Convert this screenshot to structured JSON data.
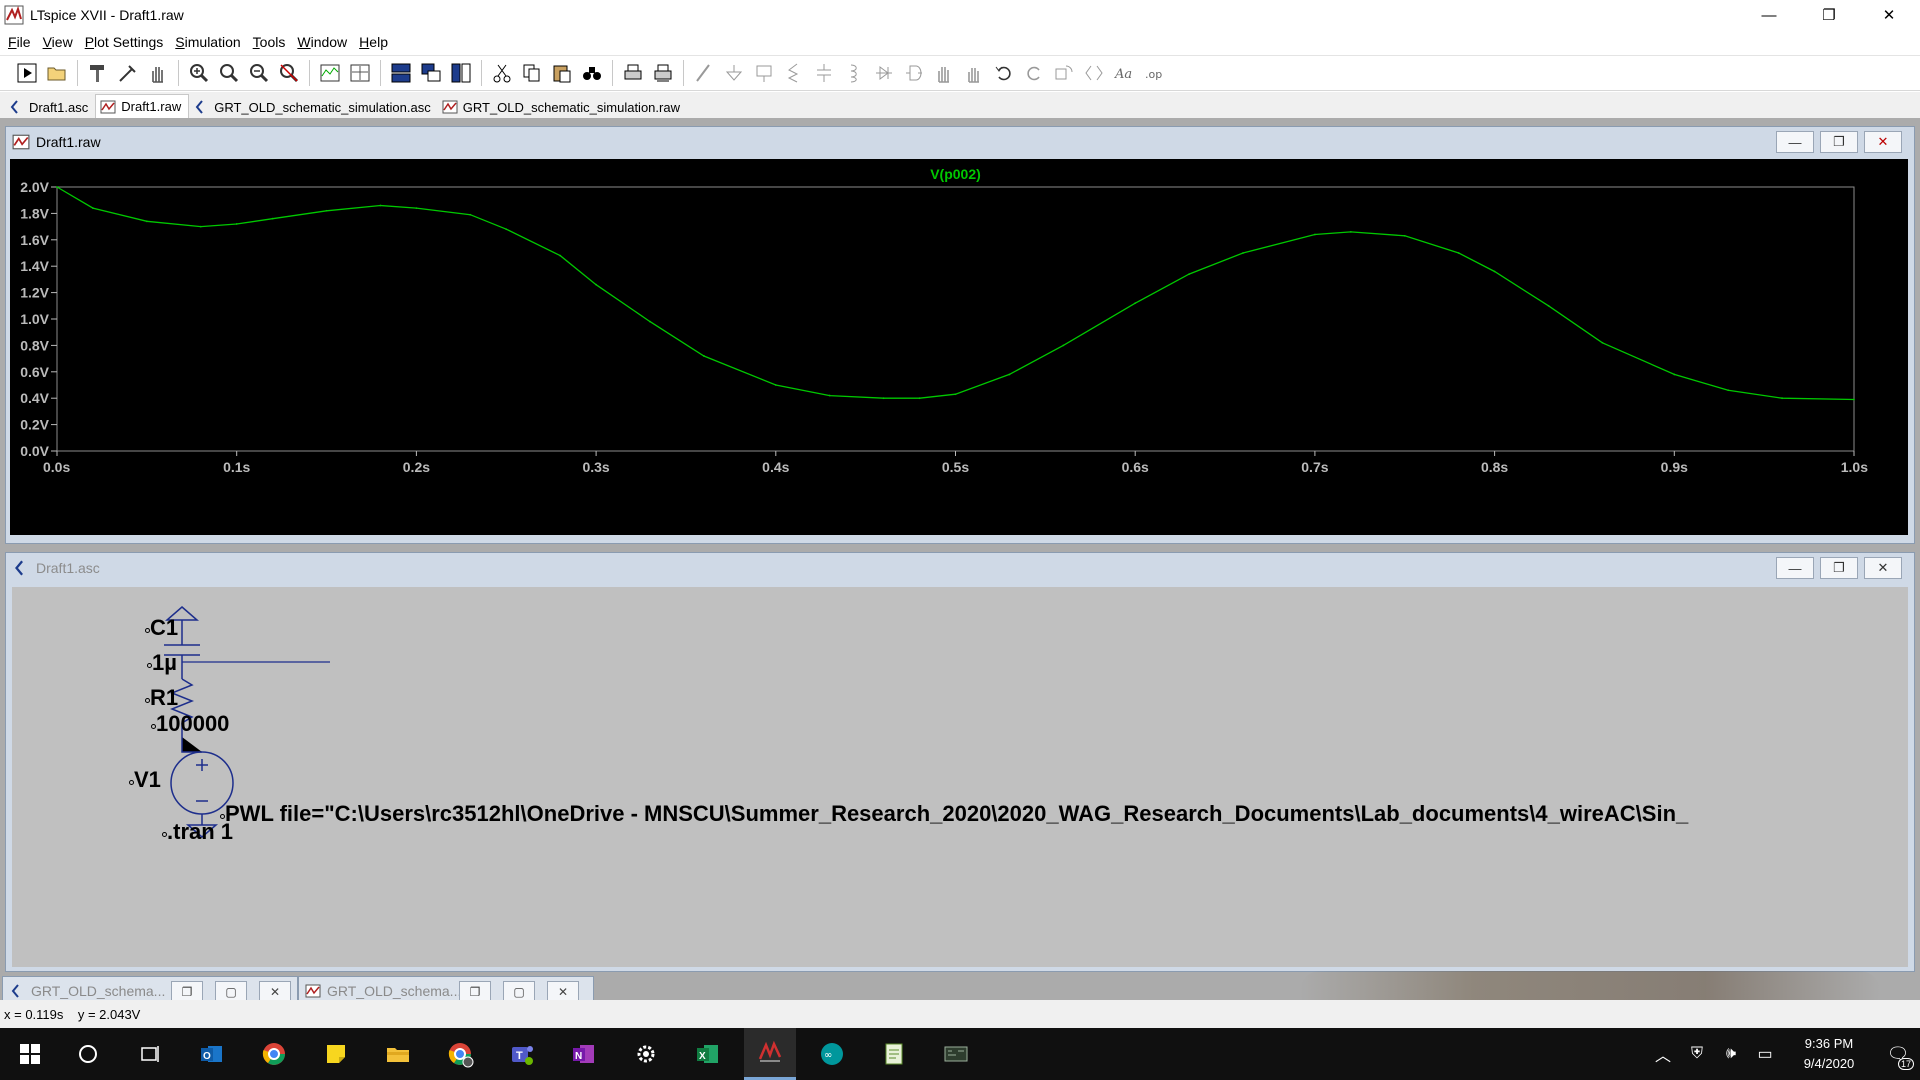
{
  "app": {
    "title": "LTspice XVII - Draft1.raw",
    "window_controls": {
      "minimize": "—",
      "maximize": "❐",
      "close": "✕"
    }
  },
  "menu": [
    "File",
    "View",
    "Plot Settings",
    "Simulation",
    "Tools",
    "Window",
    "Help"
  ],
  "toolbar": {
    "buttons": [
      "run-icon",
      "open-icon",
      "hammer-icon",
      "probe-icon",
      "pan-hand-icon",
      "zoom-in-icon",
      "zoom-area-icon",
      "zoom-out-icon",
      "zoom-cancel-icon",
      "autorange-icon",
      "waveform-edit-icon",
      "tile-horizontal-icon",
      "cascade-icon",
      "tile-vertical-icon",
      "cut-icon",
      "copy-icon",
      "paste-icon",
      "find-icon",
      "print-icon",
      "print-preview-icon",
      "wire-icon",
      "ground-icon",
      "label-icon",
      "resistor-icon",
      "capacitor-icon",
      "inductor-icon",
      "diode-icon",
      "component-icon",
      "move-hand-icon",
      "drag-hand-icon",
      "undo-icon",
      "redo-icon",
      "rotate-icon",
      "mirror-icon",
      "text-icon",
      "spice-directive-icon"
    ]
  },
  "tabs": [
    {
      "label": "Draft1.asc",
      "icon": "schematic-icon",
      "active": false
    },
    {
      "label": "Draft1.raw",
      "icon": "waveform-icon",
      "active": true
    },
    {
      "label": "GRT_OLD_schematic_simulation.asc",
      "icon": "schematic-icon",
      "active": false
    },
    {
      "label": "GRT_OLD_schematic_simulation.raw",
      "icon": "waveform-icon",
      "active": false
    }
  ],
  "waveform_window": {
    "title": "Draft1.raw",
    "buttons": {
      "minimize": "—",
      "restore": "❐",
      "close": "✕"
    }
  },
  "chart_data": {
    "type": "line",
    "title": "V(p002)",
    "xlabel": "",
    "ylabel": "",
    "xlim": [
      0,
      1
    ],
    "ylim": [
      0,
      2
    ],
    "x_ticks": [
      "0.0s",
      "0.1s",
      "0.2s",
      "0.3s",
      "0.4s",
      "0.5s",
      "0.6s",
      "0.7s",
      "0.8s",
      "0.9s",
      "1.0s"
    ],
    "y_ticks": [
      "0.0V",
      "0.2V",
      "0.4V",
      "0.6V",
      "0.8V",
      "1.0V",
      "1.2V",
      "1.4V",
      "1.6V",
      "1.8V",
      "2.0V"
    ],
    "grid": false,
    "series": [
      {
        "name": "V(p002)",
        "color": "#00c800",
        "x": [
          0.0,
          0.02,
          0.05,
          0.08,
          0.1,
          0.12,
          0.15,
          0.18,
          0.2,
          0.23,
          0.25,
          0.28,
          0.3,
          0.33,
          0.36,
          0.4,
          0.43,
          0.46,
          0.48,
          0.5,
          0.53,
          0.56,
          0.6,
          0.63,
          0.66,
          0.7,
          0.72,
          0.75,
          0.78,
          0.8,
          0.83,
          0.86,
          0.9,
          0.93,
          0.96,
          1.0
        ],
        "y": [
          2.0,
          1.84,
          1.74,
          1.7,
          1.72,
          1.76,
          1.82,
          1.86,
          1.84,
          1.79,
          1.68,
          1.48,
          1.26,
          0.98,
          0.72,
          0.5,
          0.42,
          0.4,
          0.4,
          0.43,
          0.58,
          0.8,
          1.12,
          1.34,
          1.5,
          1.64,
          1.66,
          1.63,
          1.5,
          1.36,
          1.1,
          0.82,
          0.58,
          0.46,
          0.4,
          0.39
        ]
      }
    ]
  },
  "schematic_window": {
    "title": "Draft1.asc",
    "buttons": {
      "minimize": "—",
      "restore": "❐",
      "close": "✕"
    },
    "labels": {
      "c1_name": "C1",
      "c1_value": "1µ",
      "r1_name": "R1",
      "r1_value": "100000",
      "v1_name": "V1",
      "v1_value": "PWL file=\"C:\\Users\\rc3512hl\\OneDrive - MNSCU\\Summer_Research_2020\\2020_WAG_Research_Documents\\Lab_documents\\4_wireAC\\Sin_",
      "directive": ".tran 1"
    }
  },
  "minimized_windows": [
    {
      "title": "GRT_OLD_schema...",
      "icon": "schematic-icon"
    },
    {
      "title": "GRT_OLD_schema...",
      "icon": "waveform-icon"
    }
  ],
  "status": {
    "cursor": "x = 0.119s    y = 2.043V"
  },
  "taskbar": {
    "items": [
      "windows-start-icon",
      "search-circle-icon",
      "task-view-icon",
      "outlook-icon",
      "chrome-icon",
      "sticky-notes-icon",
      "file-explorer-icon",
      "chrome-profile-icon",
      "teams-icon",
      "onenote-icon",
      "settings-icon",
      "excel-icon",
      "ltspice-icon",
      "arduino-icon",
      "notepad-icon",
      "terminal-icon"
    ],
    "tray": [
      "chevron-up-icon",
      "security-icon",
      "volume-icon",
      "battery-icon"
    ],
    "time": "9:36 PM",
    "date": "9/4/2020",
    "notification_count": "17"
  }
}
